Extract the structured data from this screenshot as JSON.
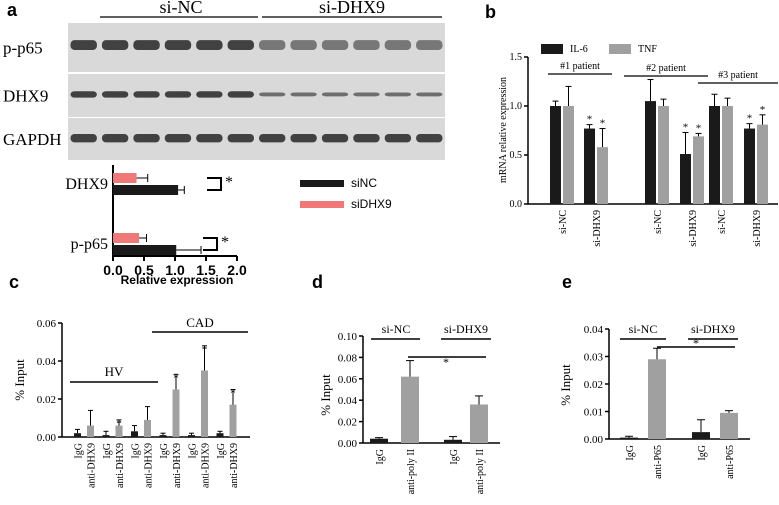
{
  "panel_letters": {
    "a": "a",
    "b": "b",
    "c": "c",
    "d": "d",
    "e": "e"
  },
  "colors": {
    "black": "#1a1a1a",
    "gray": "#a0a0a0",
    "pink": "#f07878",
    "blot_bg": "#d9d9d9",
    "blot_band": "#262626"
  },
  "blot": {
    "groups": [
      "si-NC",
      "si-DHX9"
    ],
    "rows": [
      "p-p65",
      "DHX9",
      "GAPDH"
    ],
    "lanes_per_group": 6
  },
  "chart_data": [
    {
      "id": "a",
      "type": "bar",
      "orientation": "horizontal",
      "categories": [
        "DHX9",
        "p-p65"
      ],
      "series": [
        {
          "name": "siNC",
          "values": [
            1.05,
            1.02
          ],
          "errors": [
            0.1,
            0.4
          ]
        },
        {
          "name": "siDHX9",
          "values": [
            0.38,
            0.42
          ],
          "errors": [
            0.18,
            0.12
          ]
        }
      ],
      "xlabel": "Relative expression",
      "xticks": [
        "0.0",
        "0.5",
        "1.0",
        "1.5",
        "2.0"
      ],
      "xlim": [
        0,
        2.0
      ],
      "significance": [
        "*",
        "*"
      ],
      "legend": "right"
    },
    {
      "id": "b",
      "type": "bar",
      "ylabel": "mRNA relative expression",
      "ylim": [
        0,
        1.5
      ],
      "yticks": [
        "0.0",
        "0.5",
        "1.0",
        "1.5"
      ],
      "categories": [
        "si-NC",
        "si-DHX9",
        "si-NC",
        "si-DHX9",
        "si-NC",
        "si-DHX9"
      ],
      "groups": [
        "#1 patient",
        "#2 patient",
        "#3 patient"
      ],
      "series": [
        {
          "name": "IL-6",
          "values": [
            1.0,
            0.77,
            1.05,
            0.51,
            1.0,
            0.77
          ],
          "errors": [
            0.05,
            0.04,
            0.22,
            0.22,
            0.12,
            0.05
          ]
        },
        {
          "name": "TNF",
          "values": [
            1.0,
            0.58,
            1.0,
            0.69,
            1.0,
            0.81
          ],
          "errors": [
            0.2,
            0.19,
            0.07,
            0.03,
            0.08,
            0.1
          ]
        }
      ],
      "significance": [
        "",
        "*",
        "",
        "*",
        "",
        "*"
      ],
      "legend": "top"
    },
    {
      "id": "c",
      "type": "bar",
      "ylabel": "% Input",
      "ylim": [
        0,
        0.06
      ],
      "yticks": [
        "0.00",
        "0.02",
        "0.04",
        "0.06"
      ],
      "categories": [
        "IgG",
        "anti-DHX9",
        "IgG",
        "anti-DHX9",
        "IgG",
        "anti-DHX9",
        "IgG",
        "anti-DHX9",
        "IgG",
        "anti-DHX9",
        "IgG",
        "anti-DHX9"
      ],
      "groups": [
        "HV",
        "CAD"
      ],
      "values": [
        0.002,
        0.006,
        0.001,
        0.006,
        0.003,
        0.009,
        0.001,
        0.025,
        0.001,
        0.035,
        0.002,
        0.017
      ],
      "errors": [
        0.002,
        0.008,
        0.002,
        0.003,
        0.003,
        0.007,
        0.001,
        0.008,
        0.001,
        0.013,
        0.001,
        0.008
      ],
      "significance": [
        "",
        "",
        "",
        "*",
        "",
        "",
        "",
        "*",
        "",
        "*",
        "",
        "*"
      ]
    },
    {
      "id": "d",
      "type": "bar",
      "ylabel": "% Input",
      "ylim": [
        0,
        0.1
      ],
      "yticks": [
        "0.00",
        "0.02",
        "0.04",
        "0.06",
        "0.08",
        "0.10"
      ],
      "categories": [
        "IgG",
        "anti-poly II",
        "IgG",
        "anti-poly II"
      ],
      "groups": [
        "si-NC",
        "si-DHX9"
      ],
      "values": [
        0.004,
        0.062,
        0.003,
        0.036
      ],
      "errors": [
        0.001,
        0.015,
        0.003,
        0.008
      ],
      "significance": [
        "*"
      ]
    },
    {
      "id": "e",
      "type": "bar",
      "ylabel": "% Input",
      "ylim": [
        0,
        0.04
      ],
      "yticks": [
        "0.00",
        "0.01",
        "0.02",
        "0.03",
        "0.04"
      ],
      "categories": [
        "IgG",
        "anti-P65",
        "IgG",
        "anti-P65"
      ],
      "groups": [
        "si-NC",
        "si-DHX9"
      ],
      "values": [
        0.0005,
        0.029,
        0.0025,
        0.0095
      ],
      "errors": [
        0.0005,
        0.004,
        0.0045,
        0.0008
      ],
      "significance": [
        "*"
      ]
    }
  ]
}
